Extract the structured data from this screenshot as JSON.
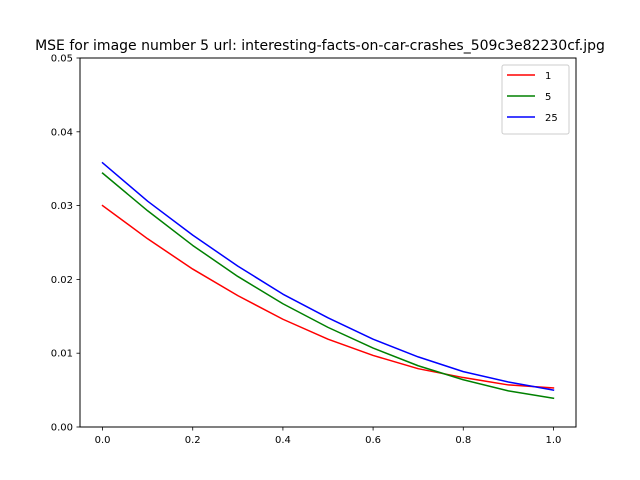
{
  "chart_data": {
    "type": "line",
    "title": "MSE for image number 5 url: interesting-facts-on-car-crashes_509c3e82230cf.jpg",
    "xlabel": "",
    "ylabel": "",
    "xlim": [
      -0.05,
      1.05
    ],
    "ylim": [
      0.0,
      0.05
    ],
    "xticks": [
      0.0,
      0.2,
      0.4,
      0.6,
      0.8,
      1.0
    ],
    "xtick_labels": [
      "0.0",
      "0.2",
      "0.4",
      "0.6",
      "0.8",
      "1.0"
    ],
    "yticks": [
      0.0,
      0.01,
      0.02,
      0.03,
      0.04,
      0.05
    ],
    "ytick_labels": [
      "0.00",
      "0.01",
      "0.02",
      "0.03",
      "0.04",
      "0.05"
    ],
    "grid": false,
    "legend_position": "top-right",
    "x": [
      0.0,
      0.1,
      0.2,
      0.3,
      0.4,
      0.5,
      0.6,
      0.7,
      0.8,
      0.9,
      1.0
    ],
    "series": [
      {
        "name": "1",
        "color": "#ff0000",
        "values": [
          0.03,
          0.0255,
          0.0214,
          0.0178,
          0.0146,
          0.0119,
          0.0097,
          0.0079,
          0.0067,
          0.0057,
          0.0053
        ]
      },
      {
        "name": "5",
        "color": "#008000",
        "values": [
          0.0344,
          0.0293,
          0.0246,
          0.0204,
          0.0167,
          0.0135,
          0.0107,
          0.0083,
          0.0064,
          0.0049,
          0.0039
        ]
      },
      {
        "name": "25",
        "color": "#0000ff",
        "values": [
          0.0358,
          0.0306,
          0.026,
          0.0218,
          0.018,
          0.0148,
          0.0119,
          0.0095,
          0.0075,
          0.0061,
          0.005
        ]
      }
    ]
  }
}
